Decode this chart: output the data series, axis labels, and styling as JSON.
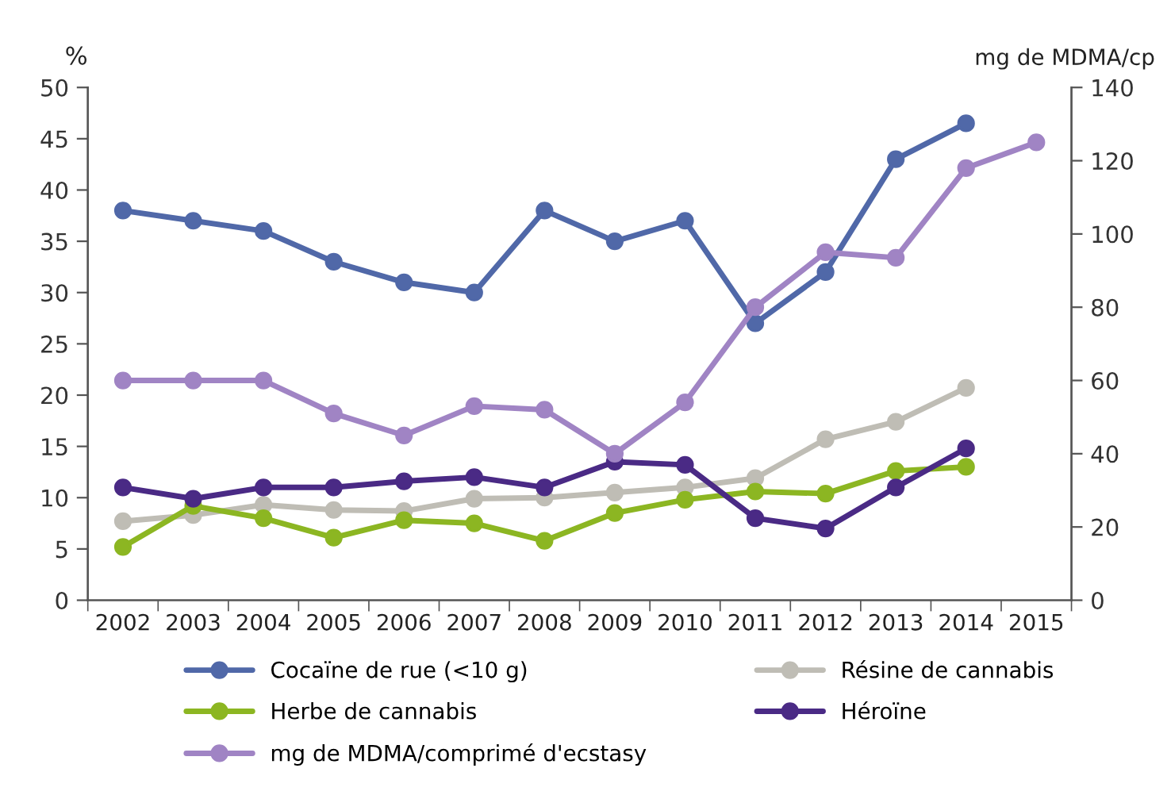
{
  "chart_data": {
    "type": "line",
    "ylabel": "%",
    "y2label": "mg de MDMA/cp",
    "categories": [
      "2002",
      "2003",
      "2004",
      "2005",
      "2006",
      "2007",
      "2008",
      "2009",
      "2010",
      "2011",
      "2012",
      "2013",
      "2014",
      "2015"
    ],
    "ylim": [
      0,
      50
    ],
    "yticks": [
      0,
      5,
      10,
      15,
      20,
      25,
      30,
      35,
      40,
      45,
      50
    ],
    "y2lim": [
      0,
      140
    ],
    "y2ticks": [
      0,
      20,
      40,
      60,
      80,
      100,
      120,
      140
    ],
    "marker": "circle",
    "line_style": "solid",
    "grid": false,
    "legend": "bottom",
    "series": [
      {
        "name": "Cocaïne de rue (<10 g)",
        "color": "#5068a8",
        "values": [
          38,
          37,
          36,
          33,
          31,
          30,
          38,
          35,
          37,
          27,
          32,
          43,
          46.5,
          null
        ]
      },
      {
        "name": "Résine de cannabis",
        "color": "#bfbdb5",
        "values": [
          7.7,
          8.3,
          9.3,
          8.8,
          8.7,
          9.9,
          10,
          10.5,
          11,
          11.9,
          15.7,
          17.4,
          20.7,
          null
        ]
      },
      {
        "name": "Herbe de cannabis",
        "color": "#8cb622",
        "values": [
          5.2,
          9.2,
          8,
          6.1,
          7.8,
          7.5,
          5.8,
          8.5,
          9.8,
          10.6,
          10.4,
          12.6,
          13,
          null
        ]
      },
      {
        "name": "Héroïne",
        "color": "#4a2a85",
        "values": [
          11,
          9.9,
          11,
          11,
          11.6,
          12,
          11,
          13.5,
          13.2,
          8,
          7,
          11,
          14.8,
          null
        ]
      },
      {
        "name": "mg de MDMA/comprimé d'ecstasy",
        "color": "#a084c4",
        "axis": "y2",
        "values": [
          60,
          60,
          60,
          51,
          45,
          53,
          52,
          40,
          54,
          80,
          95,
          93.5,
          118,
          125
        ]
      }
    ]
  }
}
